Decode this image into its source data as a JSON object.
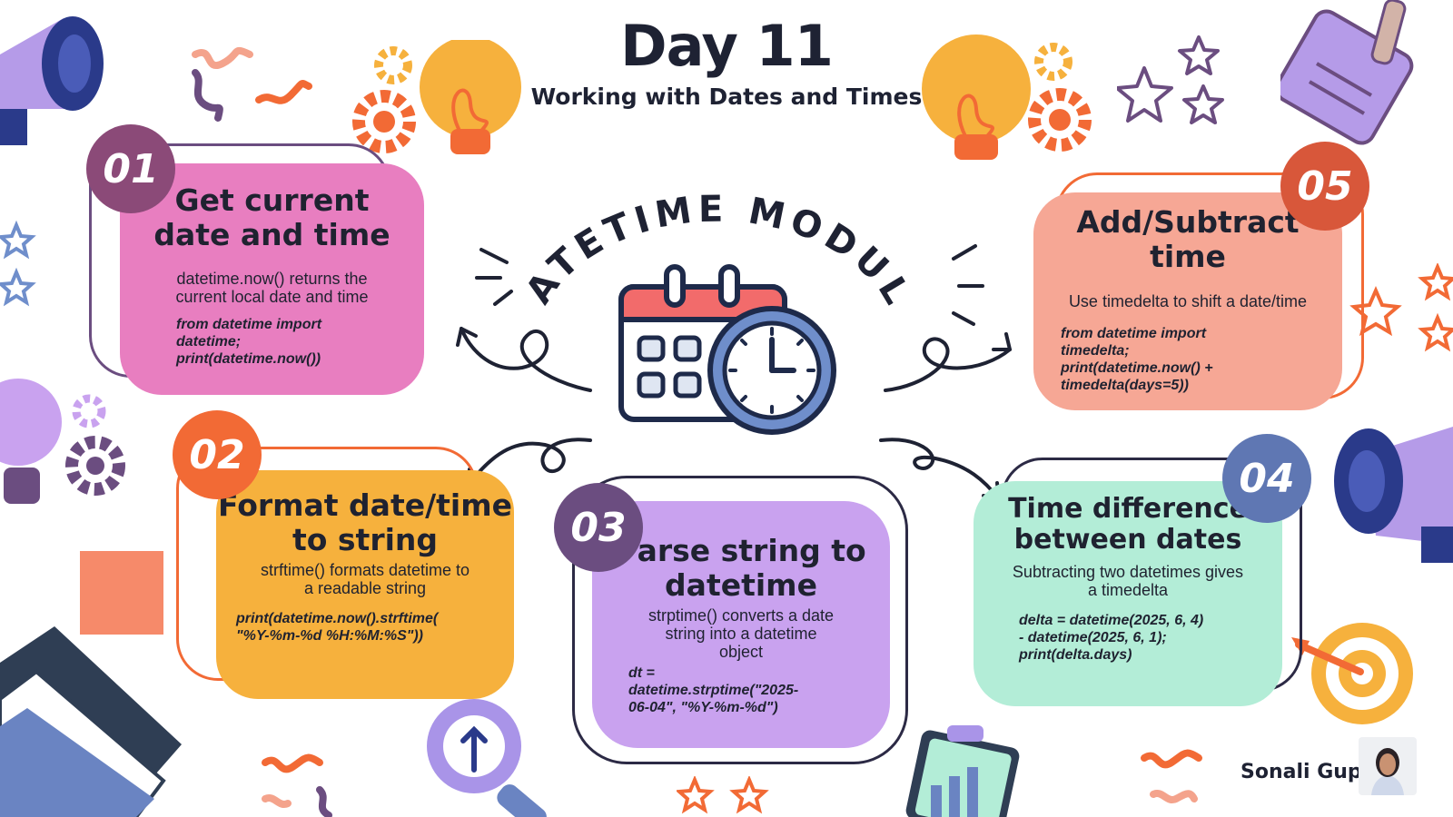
{
  "header": {
    "title": "Day 11",
    "subtitle": "Working with Dates and Times"
  },
  "center": {
    "heading": "DATETIME MODULE",
    "icon": "calendar-clock-icon"
  },
  "steps": [
    {
      "number": "01",
      "title_line1": "Get current",
      "title_line2": "date and time",
      "description_line1": "datetime.now() returns the",
      "description_line2": "current local date and time",
      "code_line1": "from datetime import",
      "code_line2": "datetime;",
      "code_line3": "print(datetime.now())",
      "card_color": "#e87ec0",
      "badge_color": "#8b4a78"
    },
    {
      "number": "02",
      "title_line1": "Format date/time",
      "title_line2": "to string",
      "description_line1": "strftime() formats datetime to",
      "description_line2": "a readable string",
      "code_line1": "print(datetime.now().strftime(",
      "code_line2": "\"%Y-%m-%d %H:%M:%S\"))",
      "card_color": "#f6b13d",
      "badge_color": "#f26a35"
    },
    {
      "number": "03",
      "title_line1": "Parse string to",
      "title_line2": "datetime",
      "description_line1": "strptime() converts a date",
      "description_line2": "string into a datetime",
      "description_line3": "object",
      "code_line1": "dt =",
      "code_line2": "datetime.strptime(\"2025-",
      "code_line3": "06-04\", \"%Y-%m-%d\")",
      "card_color": "#c9a2ef",
      "badge_color": "#6b4d80"
    },
    {
      "number": "04",
      "title_line1": "Time difference",
      "title_line2": "between dates",
      "description_line1": "Subtracting two datetimes gives",
      "description_line2": "a timedelta",
      "code_line1": "delta = datetime(2025, 6, 4)",
      "code_line2": "- datetime(2025, 6, 1);",
      "code_line3": "print(delta.days)",
      "card_color": "#b3edd7",
      "badge_color": "#5f77b3"
    },
    {
      "number": "05",
      "title_line1": "Add/Subtract",
      "title_line2": "time",
      "description_line1": "Use timedelta to shift a date/time",
      "code_line1": "from datetime import",
      "code_line2": "timedelta;",
      "code_line3": "print(datetime.now() +",
      "code_line4": "timedelta(days=5))",
      "card_color": "#f6a795",
      "badge_color": "#d8573a"
    }
  ],
  "footer": {
    "author": "Sonali Gupta"
  },
  "colors": {
    "ink": "#1e2233",
    "orange": "#f26a35",
    "yellow": "#f6b13d",
    "purple": "#b58be6",
    "navy": "#2a3a8a"
  }
}
